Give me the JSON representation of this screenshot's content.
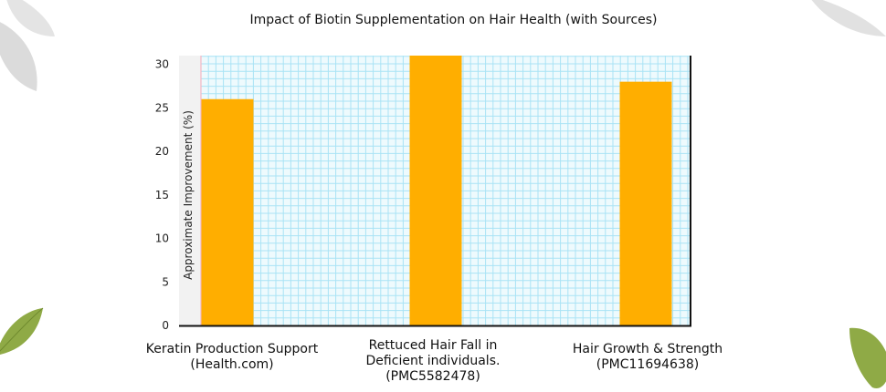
{
  "chart_data": {
    "type": "bar",
    "title": "Impact of Biotin Supplementation on Hair Health (with Sources)",
    "xlabel": "",
    "ylabel": "Approximate Improvement (%)",
    "categories": [
      "Keratin Production Support\n(Health.com)",
      "Rettuced Hair Fall in\nDeficient individuals.\n(PMC5582478)",
      "Hair Growth & Strength\n(PMC11694638)"
    ],
    "values": [
      26,
      31,
      28
    ],
    "ylim": [
      0,
      31
    ],
    "yticks": [
      0,
      5,
      10,
      15,
      20,
      25,
      30
    ],
    "grid": true,
    "legend": "none",
    "colors": {
      "bar": "#FFAE00",
      "grid": "#A9E3F5",
      "plot_background": "#EEFAFD",
      "left_band": "#F2F2F2",
      "axis": "#111111",
      "leaf": "#8FAA46"
    }
  }
}
